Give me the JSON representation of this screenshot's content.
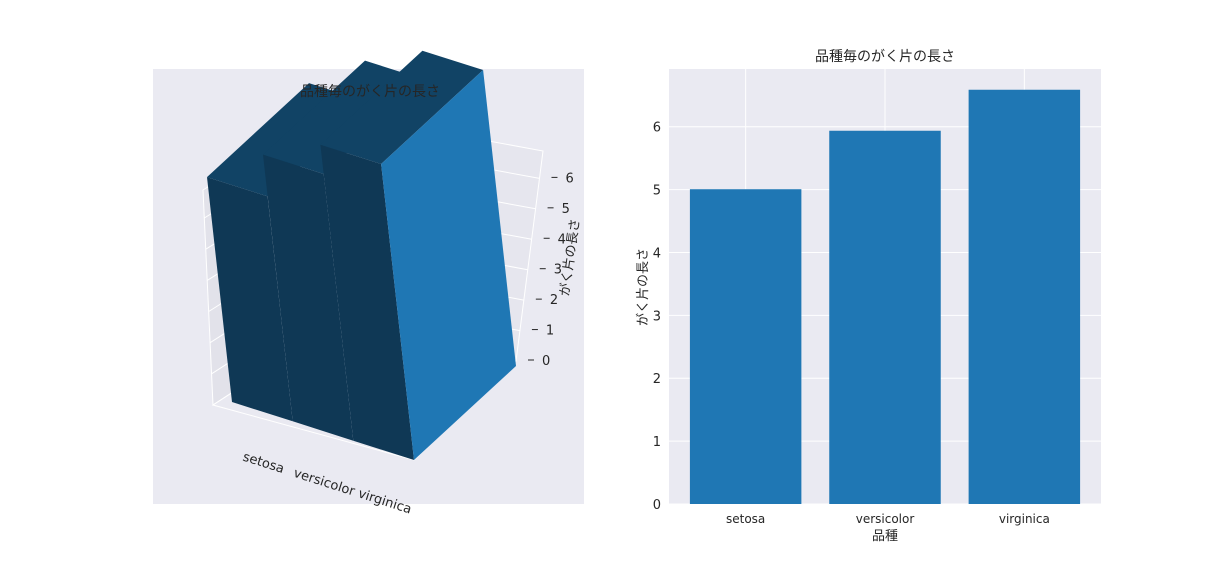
{
  "chart_data": [
    {
      "type": "bar",
      "projection": "3d",
      "title": "品種毎のがく片の長さ",
      "xlabel": "",
      "zlabel": "がく片の長さ",
      "categories": [
        "setosa",
        "versicolor",
        "virginica"
      ],
      "values": [
        5.006,
        5.936,
        6.588
      ],
      "zticks": [
        "0",
        "1",
        "2",
        "3",
        "4",
        "5",
        "6"
      ],
      "color": "#1f77b4",
      "background": "#eaeaf2",
      "grid": true
    },
    {
      "type": "bar",
      "title": "品種毎のがく片の長さ",
      "xlabel": "品種",
      "ylabel": "がく片の長さ",
      "categories": [
        "setosa",
        "versicolor",
        "virginica"
      ],
      "values": [
        5.006,
        5.936,
        6.588
      ],
      "ylim": [
        0,
        6.918
      ],
      "yticks": [
        0,
        1,
        2,
        3,
        4,
        5,
        6
      ],
      "color": "#1f77b4",
      "background": "#eaeaf2",
      "grid": true
    }
  ]
}
